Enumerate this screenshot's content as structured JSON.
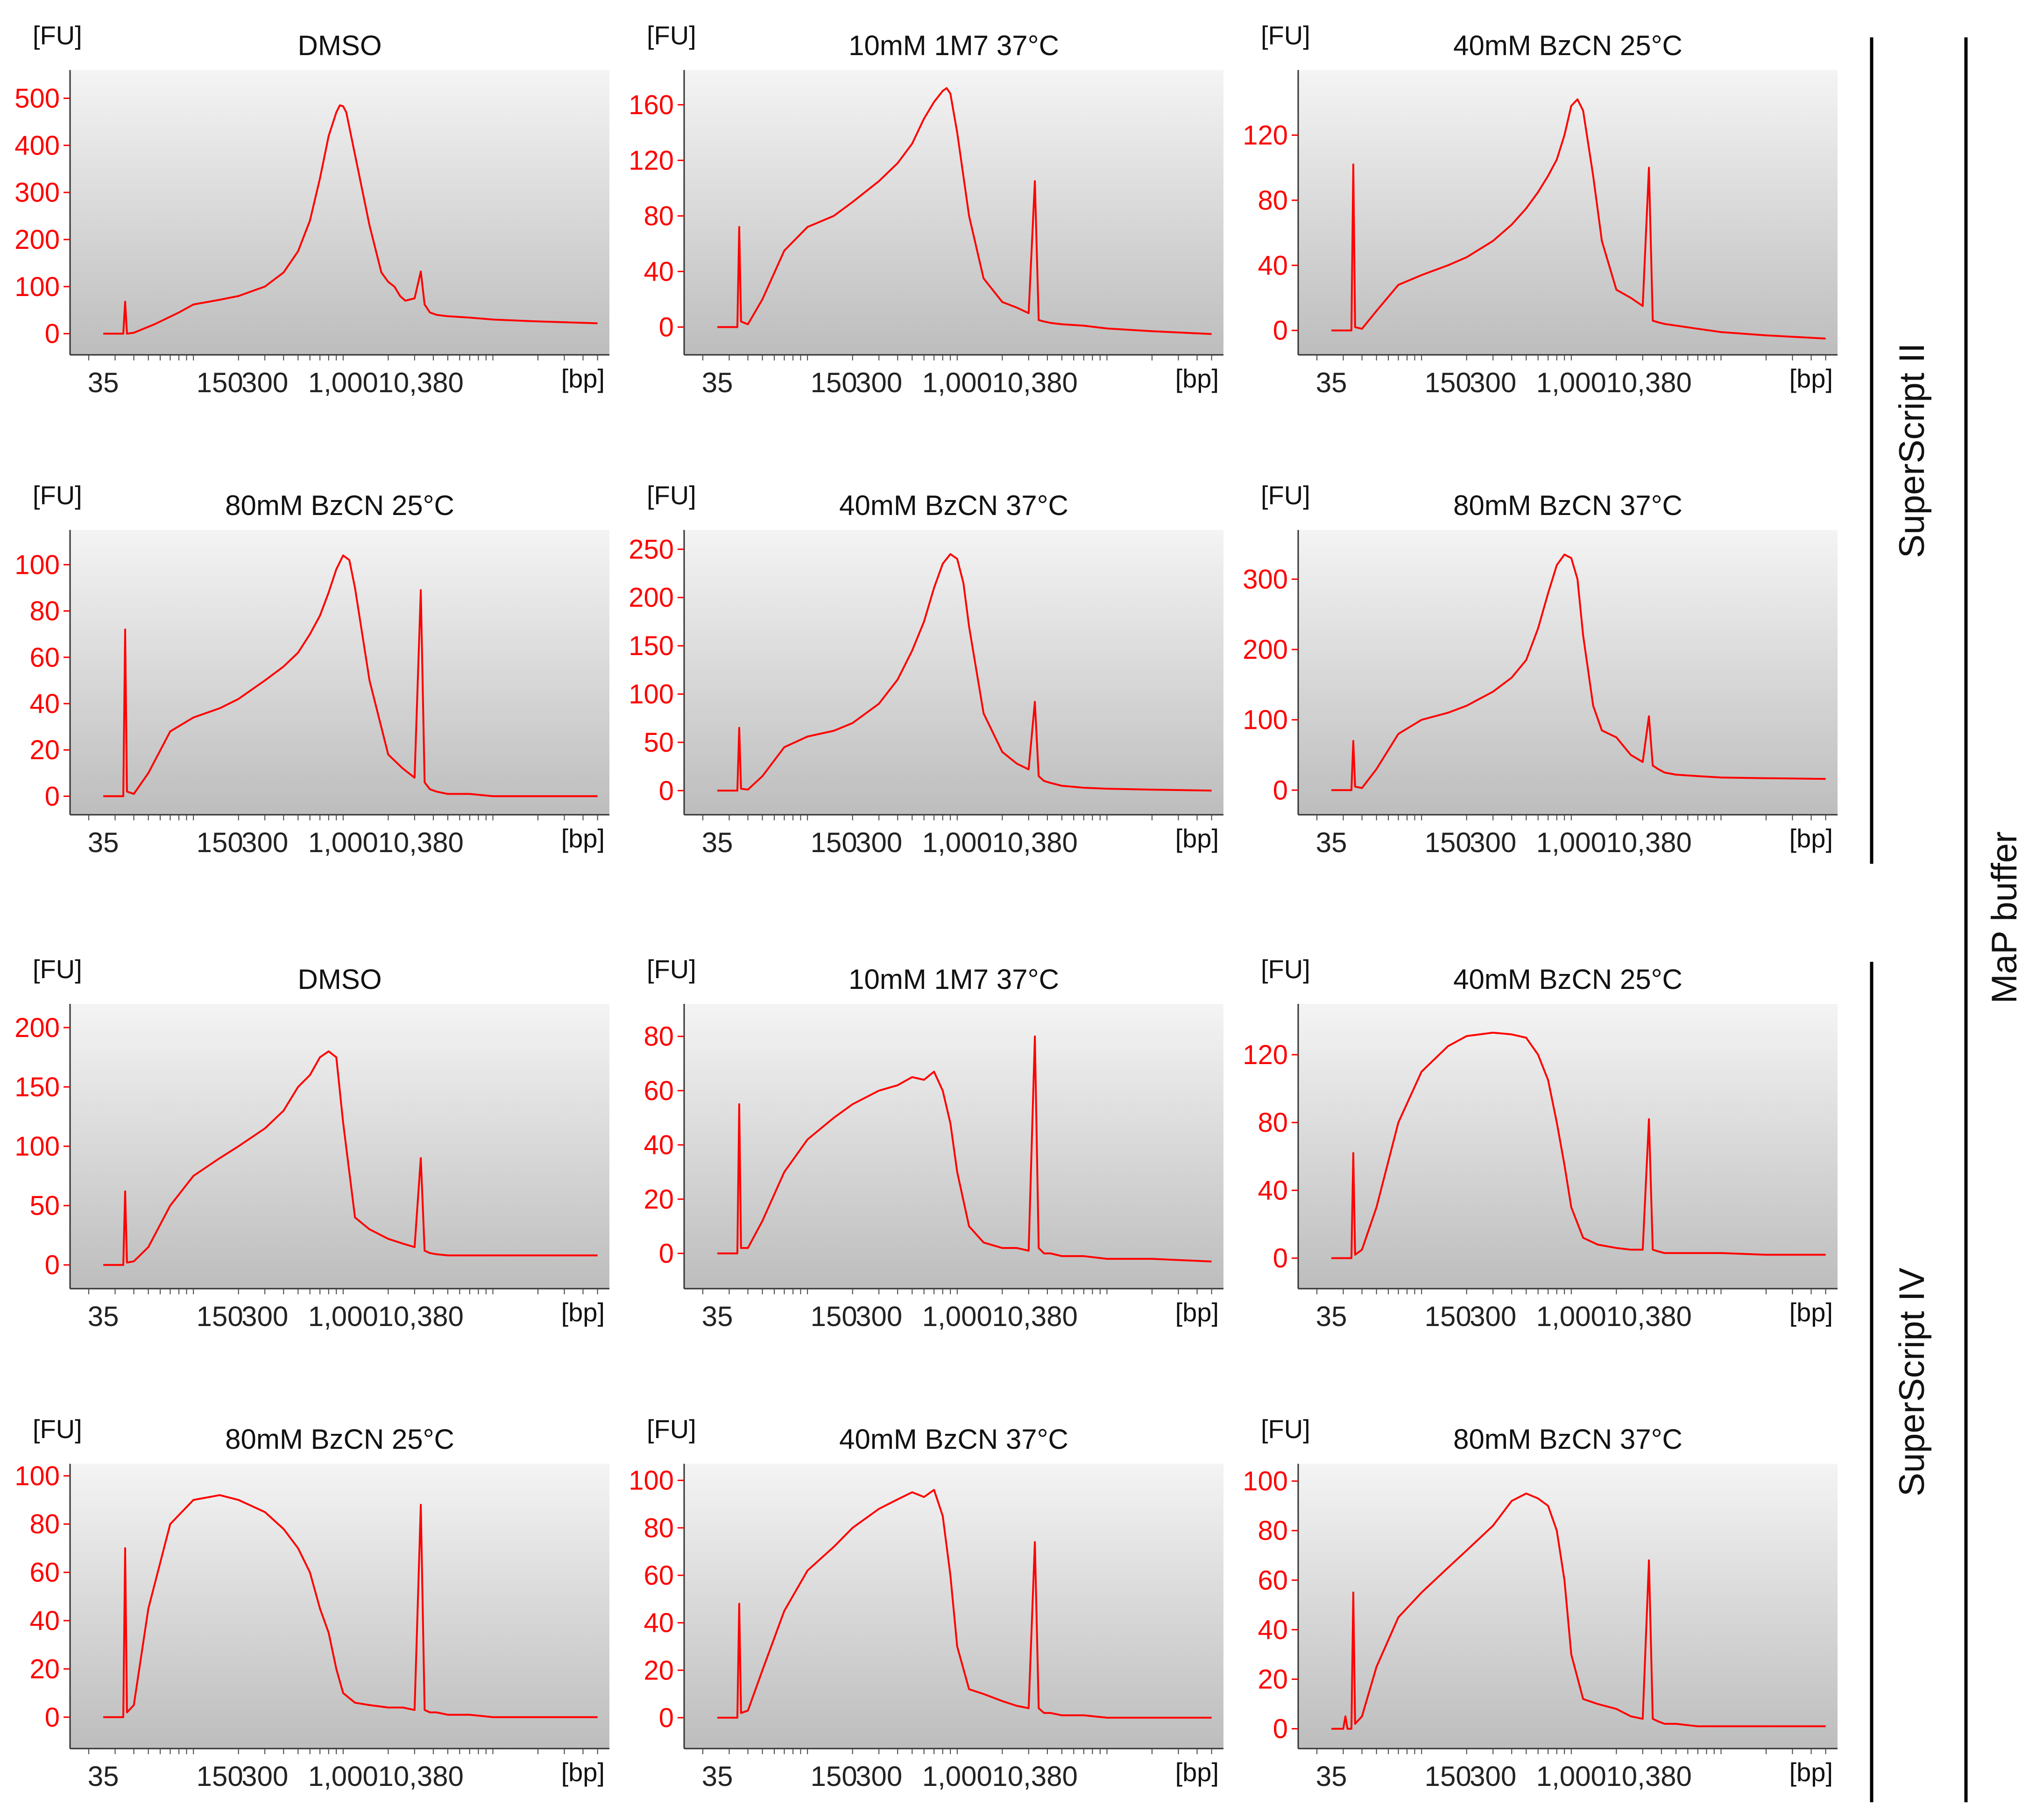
{
  "figure": {
    "group_labels": {
      "outer": "MaP buffer",
      "top": "SuperScript II",
      "bottom": "SuperScript IV"
    }
  },
  "chart_data": [
    {
      "type": "line",
      "title": "DMSO",
      "ylabel": "[FU]",
      "xlabel": "[bp]",
      "x_ticks": [
        "35",
        "150",
        "300",
        "1,000",
        "10,380"
      ],
      "y_ticks": [
        0,
        100,
        200,
        300,
        400,
        500
      ],
      "ylim": [
        -45,
        560
      ],
      "x_scale": "log",
      "series": [
        {
          "name": "",
          "color": "#ff0000",
          "x": [
            25,
            34,
            35,
            36,
            40,
            55,
            80,
            100,
            150,
            200,
            300,
            400,
            500,
            600,
            700,
            800,
            900,
            950,
            1000,
            1050,
            1200,
            1500,
            1800,
            2000,
            2200,
            2400,
            2600,
            3000,
            3300,
            3500,
            3800,
            4200,
            5000,
            7000,
            10000,
            20000,
            50000
          ],
          "y": [
            0,
            0,
            68,
            0,
            2,
            20,
            45,
            62,
            72,
            80,
            100,
            130,
            175,
            240,
            330,
            420,
            470,
            485,
            483,
            470,
            380,
            230,
            130,
            110,
            100,
            80,
            70,
            75,
            132,
            62,
            45,
            40,
            37,
            34,
            30,
            26,
            22
          ]
        }
      ]
    },
    {
      "type": "line",
      "title": "10mM 1M7 37°C",
      "ylabel": "[FU]",
      "xlabel": "[bp]",
      "x_ticks": [
        "35",
        "150",
        "300",
        "1,000",
        "10,380"
      ],
      "y_ticks": [
        0,
        40,
        80,
        120,
        160
      ],
      "ylim": [
        -20,
        185
      ],
      "x_scale": "log",
      "series": [
        {
          "name": "",
          "color": "#ff0000",
          "x": [
            25,
            34,
            35,
            36,
            40,
            50,
            70,
            100,
            150,
            200,
            300,
            400,
            500,
            600,
            700,
            800,
            850,
            900,
            1000,
            1200,
            1500,
            2000,
            2500,
            3000,
            3300,
            3500,
            3800,
            4200,
            5000,
            7000,
            10000,
            20000,
            50000
          ],
          "y": [
            0,
            0,
            72,
            4,
            2,
            20,
            55,
            72,
            80,
            90,
            105,
            118,
            132,
            150,
            162,
            170,
            172,
            168,
            140,
            80,
            35,
            18,
            14,
            10,
            105,
            5,
            4,
            3,
            2,
            1,
            -1,
            -3,
            -5
          ]
        }
      ]
    },
    {
      "type": "line",
      "title": "40mM BzCN 25°C",
      "ylabel": "[FU]",
      "xlabel": "[bp]",
      "x_ticks": [
        "35",
        "150",
        "300",
        "1,000",
        "10,380"
      ],
      "y_ticks": [
        0,
        40,
        80,
        120
      ],
      "ylim": [
        -15,
        160
      ],
      "x_scale": "log",
      "series": [
        {
          "name": "",
          "color": "#ff0000",
          "x": [
            25,
            34,
            35,
            36,
            40,
            50,
            70,
            100,
            150,
            200,
            300,
            400,
            500,
            600,
            700,
            800,
            900,
            1000,
            1100,
            1200,
            1400,
            1600,
            2000,
            2500,
            3000,
            3300,
            3500,
            3800,
            4200,
            5000,
            7000,
            10000,
            20000,
            50000
          ],
          "y": [
            0,
            0,
            102,
            2,
            1,
            12,
            28,
            34,
            40,
            45,
            55,
            65,
            75,
            85,
            95,
            105,
            120,
            138,
            142,
            135,
            95,
            55,
            25,
            20,
            15,
            100,
            6,
            5,
            4,
            3,
            1,
            -1,
            -3,
            -5
          ]
        }
      ]
    },
    {
      "type": "line",
      "title": "80mM BzCN 25°C",
      "ylabel": "[FU]",
      "xlabel": "[bp]",
      "x_ticks": [
        "35",
        "150",
        "300",
        "1,000",
        "10,380"
      ],
      "y_ticks": [
        0,
        20,
        40,
        60,
        80,
        100
      ],
      "ylim": [
        -8,
        115
      ],
      "x_scale": "log",
      "series": [
        {
          "name": "",
          "color": "#ff0000",
          "x": [
            25,
            34,
            35,
            36,
            40,
            50,
            70,
            100,
            150,
            200,
            300,
            400,
            500,
            600,
            700,
            800,
            900,
            1000,
            1100,
            1200,
            1500,
            2000,
            2500,
            3000,
            3300,
            3500,
            3800,
            4200,
            5000,
            7000,
            10000,
            20000,
            50000
          ],
          "y": [
            0,
            0,
            72,
            2,
            1,
            10,
            28,
            34,
            38,
            42,
            50,
            56,
            62,
            70,
            78,
            88,
            98,
            104,
            102,
            90,
            50,
            18,
            12,
            8,
            89,
            6,
            3,
            2,
            1,
            1,
            0,
            0,
            0
          ]
        }
      ]
    },
    {
      "type": "line",
      "title": "40mM BzCN 37°C",
      "ylabel": "[FU]",
      "xlabel": "[bp]",
      "x_ticks": [
        "35",
        "150",
        "300",
        "1,000",
        "10,380"
      ],
      "y_ticks": [
        0,
        50,
        100,
        150,
        200,
        250
      ],
      "ylim": [
        -25,
        270
      ],
      "x_scale": "log",
      "series": [
        {
          "name": "",
          "color": "#ff0000",
          "x": [
            25,
            34,
            35,
            36,
            40,
            50,
            70,
            100,
            150,
            200,
            300,
            400,
            500,
            600,
            700,
            800,
            900,
            1000,
            1100,
            1200,
            1500,
            2000,
            2500,
            3000,
            3300,
            3500,
            3800,
            4200,
            5000,
            7000,
            10000,
            20000,
            50000
          ],
          "y": [
            0,
            0,
            65,
            2,
            1,
            15,
            45,
            56,
            62,
            70,
            90,
            115,
            145,
            175,
            210,
            235,
            245,
            240,
            215,
            170,
            80,
            40,
            28,
            22,
            92,
            15,
            10,
            8,
            5,
            3,
            2,
            1,
            0
          ]
        }
      ]
    },
    {
      "type": "line",
      "title": "80mM BzCN 37°C",
      "ylabel": "[FU]",
      "xlabel": "[bp]",
      "x_ticks": [
        "35",
        "150",
        "300",
        "1,000",
        "10,380"
      ],
      "y_ticks": [
        0,
        100,
        200,
        300
      ],
      "ylim": [
        -35,
        370
      ],
      "x_scale": "log",
      "series": [
        {
          "name": "",
          "color": "#ff0000",
          "x": [
            25,
            34,
            35,
            36,
            40,
            50,
            70,
            100,
            150,
            200,
            300,
            400,
            500,
            600,
            700,
            800,
            900,
            1000,
            1100,
            1200,
            1400,
            1600,
            2000,
            2500,
            3000,
            3300,
            3500,
            3800,
            4200,
            5000,
            7000,
            10000,
            20000,
            50000
          ],
          "y": [
            0,
            0,
            70,
            5,
            3,
            30,
            80,
            100,
            110,
            120,
            140,
            160,
            185,
            230,
            280,
            320,
            335,
            330,
            300,
            220,
            120,
            85,
            75,
            50,
            40,
            105,
            35,
            30,
            25,
            22,
            20,
            18,
            17,
            16
          ]
        }
      ]
    },
    {
      "type": "line",
      "title": "DMSO",
      "ylabel": "[FU]",
      "xlabel": "[bp]",
      "x_ticks": [
        "35",
        "150",
        "300",
        "1,000",
        "10,380"
      ],
      "y_ticks": [
        0,
        50,
        100,
        150,
        200
      ],
      "ylim": [
        -20,
        220
      ],
      "x_scale": "log",
      "series": [
        {
          "name": "",
          "color": "#ff0000",
          "x": [
            25,
            34,
            35,
            36,
            40,
            50,
            70,
            100,
            150,
            200,
            300,
            400,
            500,
            600,
            700,
            800,
            900,
            1000,
            1200,
            1500,
            2000,
            2500,
            3000,
            3300,
            3500,
            3800,
            4200,
            5000,
            7000,
            10000,
            20000,
            50000
          ],
          "y": [
            0,
            0,
            62,
            2,
            3,
            15,
            50,
            75,
            90,
            100,
            115,
            130,
            150,
            160,
            175,
            180,
            175,
            120,
            40,
            30,
            22,
            18,
            15,
            90,
            12,
            10,
            9,
            8,
            8,
            8,
            8,
            8
          ]
        }
      ]
    },
    {
      "type": "line",
      "title": "10mM 1M7 37°C",
      "ylabel": "[FU]",
      "xlabel": "[bp]",
      "x_ticks": [
        "35",
        "150",
        "300",
        "1,000",
        "10,380"
      ],
      "y_ticks": [
        0,
        20,
        40,
        60,
        80
      ],
      "ylim": [
        -13,
        92
      ],
      "x_scale": "log",
      "series": [
        {
          "name": "",
          "color": "#ff0000",
          "x": [
            25,
            34,
            35,
            36,
            40,
            50,
            70,
            100,
            150,
            200,
            300,
            400,
            500,
            600,
            700,
            800,
            900,
            1000,
            1200,
            1500,
            2000,
            2500,
            3000,
            3300,
            3500,
            3800,
            4200,
            5000,
            7000,
            10000,
            20000,
            50000
          ],
          "y": [
            0,
            0,
            55,
            2,
            2,
            12,
            30,
            42,
            50,
            55,
            60,
            62,
            65,
            64,
            67,
            60,
            48,
            30,
            10,
            4,
            2,
            2,
            1,
            80,
            2,
            0,
            0,
            -1,
            -1,
            -2,
            -2,
            -3
          ]
        }
      ]
    },
    {
      "type": "line",
      "title": "40mM BzCN 25°C",
      "ylabel": "[FU]",
      "xlabel": "[bp]",
      "x_ticks": [
        "35",
        "150",
        "300",
        "1,000",
        "10,380"
      ],
      "y_ticks": [
        0,
        40,
        80,
        120
      ],
      "ylim": [
        -18,
        150
      ],
      "x_scale": "log",
      "series": [
        {
          "name": "",
          "color": "#ff0000",
          "x": [
            25,
            34,
            35,
            36,
            40,
            50,
            70,
            100,
            150,
            200,
            300,
            400,
            500,
            600,
            700,
            800,
            900,
            1000,
            1200,
            1500,
            2000,
            2500,
            3000,
            3300,
            3500,
            3800,
            4200,
            5000,
            7000,
            10000,
            20000,
            50000
          ],
          "y": [
            0,
            0,
            62,
            2,
            5,
            30,
            80,
            110,
            125,
            131,
            133,
            132,
            130,
            120,
            105,
            80,
            55,
            30,
            12,
            8,
            6,
            5,
            5,
            82,
            5,
            4,
            3,
            3,
            3,
            3,
            2,
            2
          ]
        }
      ]
    },
    {
      "type": "line",
      "title": "80mM BzCN 25°C",
      "ylabel": "[FU]",
      "xlabel": "[bp]",
      "x_ticks": [
        "35",
        "150",
        "300",
        "1,000",
        "10,380"
      ],
      "y_ticks": [
        0,
        20,
        40,
        60,
        80,
        100
      ],
      "ylim": [
        -13,
        105
      ],
      "x_scale": "log",
      "series": [
        {
          "name": "",
          "color": "#ff0000",
          "x": [
            25,
            34,
            35,
            36,
            40,
            50,
            70,
            100,
            150,
            200,
            300,
            400,
            500,
            600,
            700,
            800,
            900,
            1000,
            1200,
            1500,
            2000,
            2500,
            3000,
            3300,
            3500,
            3800,
            4200,
            5000,
            7000,
            10000,
            20000,
            50000
          ],
          "y": [
            0,
            0,
            70,
            2,
            5,
            45,
            80,
            90,
            92,
            90,
            85,
            78,
            70,
            60,
            45,
            35,
            20,
            10,
            6,
            5,
            4,
            4,
            3,
            88,
            3,
            2,
            2,
            1,
            1,
            0,
            0,
            0
          ]
        }
      ]
    },
    {
      "type": "line",
      "title": "40mM BzCN 37°C",
      "ylabel": "[FU]",
      "xlabel": "[bp]",
      "x_ticks": [
        "35",
        "150",
        "300",
        "1,000",
        "10,380"
      ],
      "y_ticks": [
        0,
        20,
        40,
        60,
        80,
        100
      ],
      "ylim": [
        -13,
        107
      ],
      "x_scale": "log",
      "series": [
        {
          "name": "",
          "color": "#ff0000",
          "x": [
            25,
            34,
            35,
            36,
            40,
            50,
            70,
            100,
            150,
            200,
            300,
            400,
            500,
            600,
            700,
            800,
            900,
            1000,
            1200,
            1500,
            2000,
            2500,
            3000,
            3300,
            3500,
            3800,
            4200,
            5000,
            7000,
            10000,
            20000,
            50000
          ],
          "y": [
            0,
            0,
            48,
            2,
            3,
            20,
            45,
            62,
            72,
            80,
            88,
            92,
            95,
            93,
            96,
            85,
            60,
            30,
            12,
            10,
            7,
            5,
            4,
            74,
            4,
            2,
            2,
            1,
            1,
            0,
            0,
            0
          ]
        }
      ]
    },
    {
      "type": "line",
      "title": "80mM BzCN 37°C",
      "ylabel": "[FU]",
      "xlabel": "[bp]",
      "x_ticks": [
        "35",
        "150",
        "300",
        "1,000",
        "10,380"
      ],
      "y_ticks": [
        0,
        20,
        40,
        60,
        80,
        100
      ],
      "ylim": [
        -8,
        107
      ],
      "x_scale": "log",
      "series": [
        {
          "name": "",
          "color": "#ff0000",
          "x": [
            25,
            30,
            31,
            32,
            34,
            35,
            36,
            40,
            50,
            70,
            100,
            150,
            200,
            300,
            400,
            500,
            600,
            700,
            800,
            900,
            1000,
            1200,
            1500,
            2000,
            2500,
            3000,
            3300,
            3500,
            3800,
            4200,
            5000,
            7000,
            10000,
            20000,
            50000
          ],
          "y": [
            0,
            0,
            5,
            0,
            0,
            55,
            2,
            5,
            25,
            45,
            55,
            65,
            72,
            82,
            92,
            95,
            93,
            90,
            80,
            60,
            30,
            12,
            10,
            8,
            5,
            4,
            68,
            4,
            3,
            2,
            2,
            1,
            1,
            1,
            1
          ]
        }
      ]
    }
  ]
}
